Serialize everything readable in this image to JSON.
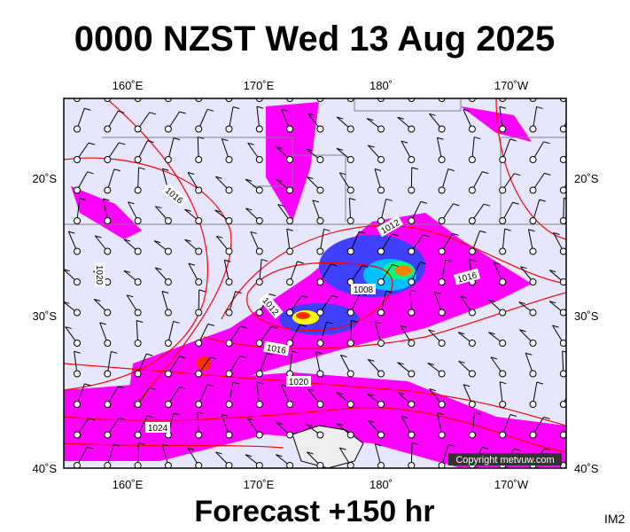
{
  "header": {
    "title": "0000 NZST Wed 13 Aug 2025"
  },
  "map": {
    "top_labels": [
      "160˚E",
      "170˚E",
      "180˚",
      "170˚W"
    ],
    "bottom_labels": [
      "160˚E",
      "170˚E",
      "180˚",
      "170˚W"
    ],
    "left_labels": [
      "20˚S",
      "30˚S",
      "40˚S"
    ],
    "right_labels": [
      "20˚S",
      "30˚S",
      "40˚S"
    ],
    "isobar_labels": [
      "1016",
      "1012",
      "1020",
      "1008",
      "1016",
      "1012",
      "1016",
      "1020",
      "1024"
    ],
    "copyright": "Copyright metvuw.com"
  },
  "footer": {
    "forecast": "Forecast +150 hr",
    "code": "IM2"
  }
}
